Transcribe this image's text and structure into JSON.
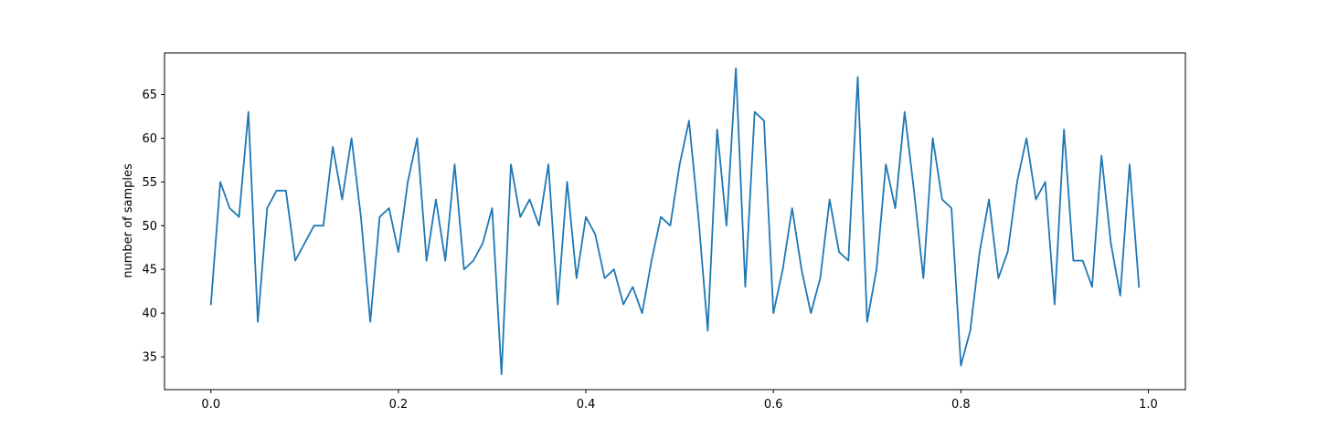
{
  "chart_data": {
    "type": "line",
    "title": "",
    "xlabel": "",
    "ylabel": "number of samples",
    "xlim": [
      -0.0495,
      1.0395
    ],
    "ylim": [
      31.25,
      69.75
    ],
    "grid": false,
    "x_ticks": [
      0.0,
      0.2,
      0.4,
      0.6,
      0.8,
      1.0
    ],
    "x_tick_labels": [
      "0.0",
      "0.2",
      "0.4",
      "0.6",
      "0.8",
      "1.0"
    ],
    "y_ticks": [
      35,
      40,
      45,
      50,
      55,
      60,
      65
    ],
    "y_tick_labels": [
      "35",
      "40",
      "45",
      "50",
      "55",
      "60",
      "65"
    ],
    "series": [
      {
        "color": "#1f77b4",
        "x": [
          0.0,
          0.01,
          0.02,
          0.03,
          0.04,
          0.05,
          0.06,
          0.07,
          0.08,
          0.09,
          0.1,
          0.11,
          0.12,
          0.13,
          0.14,
          0.15,
          0.16,
          0.17,
          0.18,
          0.19,
          0.2,
          0.21,
          0.22,
          0.23,
          0.24,
          0.25,
          0.26,
          0.27,
          0.28,
          0.29,
          0.3,
          0.31,
          0.32,
          0.33,
          0.34,
          0.35,
          0.36,
          0.37,
          0.38,
          0.39,
          0.4,
          0.41,
          0.42,
          0.43,
          0.44,
          0.45,
          0.46,
          0.47,
          0.48,
          0.49,
          0.5,
          0.51,
          0.52,
          0.53,
          0.54,
          0.55,
          0.56,
          0.57,
          0.58,
          0.59,
          0.6,
          0.61,
          0.62,
          0.63,
          0.64,
          0.65,
          0.66,
          0.67,
          0.68,
          0.69,
          0.7,
          0.71,
          0.72,
          0.73,
          0.74,
          0.75,
          0.76,
          0.77,
          0.78,
          0.79,
          0.8,
          0.81,
          0.82,
          0.83,
          0.84,
          0.85,
          0.86,
          0.87,
          0.88,
          0.89,
          0.9,
          0.91,
          0.92,
          0.93,
          0.94,
          0.95,
          0.96,
          0.97,
          0.98,
          0.99
        ],
        "y": [
          41,
          55,
          52,
          51,
          63,
          39,
          52,
          54,
          54,
          46,
          48,
          50,
          50,
          59,
          53,
          60,
          51,
          39,
          51,
          52,
          47,
          55,
          60,
          46,
          53,
          46,
          57,
          45,
          46,
          48,
          52,
          33,
          57,
          51,
          53,
          50,
          57,
          41,
          55,
          44,
          51,
          49,
          44,
          45,
          41,
          43,
          40,
          46,
          51,
          50,
          57,
          62,
          51,
          38,
          61,
          50,
          68,
          43,
          63,
          62,
          40,
          45,
          52,
          45,
          40,
          44,
          53,
          47,
          46,
          67,
          39,
          45,
          57,
          52,
          63,
          54,
          44,
          60,
          53,
          52,
          34,
          38,
          47,
          53,
          44,
          47,
          55,
          60,
          53,
          55,
          41,
          61,
          46,
          46,
          43,
          58,
          48,
          42,
          57,
          43
        ]
      }
    ]
  }
}
